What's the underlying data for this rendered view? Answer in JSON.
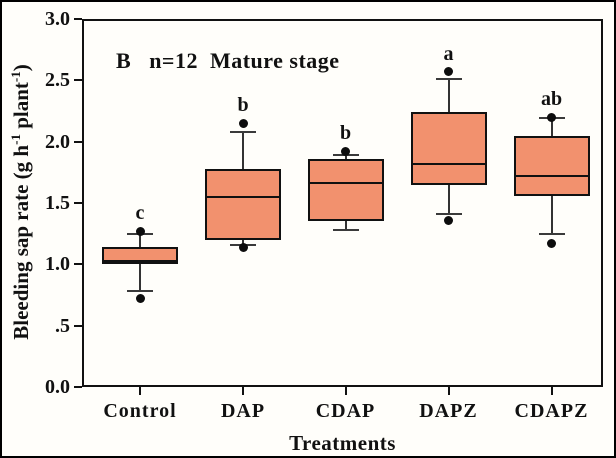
{
  "chart_data": {
    "type": "box",
    "panel_label": "B",
    "annotation": "n=12  Mature stage",
    "title": "B  n=12  Mature stage",
    "xlabel": "Treatments",
    "ylabel": "Bleeding sap rate (g h⁻¹ plant⁻¹)",
    "ylabel_parts": [
      {
        "text": "Bleeding sap rate (g h"
      },
      {
        "sup": "-1"
      },
      {
        "text": " plant"
      },
      {
        "sup": "-1"
      },
      {
        "text": ")"
      }
    ],
    "categories": [
      "Control",
      "DAP",
      "CDAP",
      "DAPZ",
      "CDAPZ"
    ],
    "ylim": [
      0.0,
      3.0
    ],
    "yticks": [
      {
        "label": "0.0",
        "value": 0.0
      },
      {
        "label": ".5",
        "value": 0.5
      },
      {
        "label": "1.0",
        "value": 1.0
      },
      {
        "label": "1.5",
        "value": 1.5
      },
      {
        "label": "2.0",
        "value": 2.0
      },
      {
        "label": "2.5",
        "value": 2.5
      },
      {
        "label": "3.0",
        "value": 3.0
      }
    ],
    "grid": false,
    "legend": null,
    "box_fill_color": "#F2916E",
    "line_color": "#111111",
    "series": [
      {
        "category": "Control",
        "sig_letter": "c",
        "q1": 1.0,
        "median": 1.03,
        "q3": 1.14,
        "whisker_low": 0.78,
        "whisker_high": 1.25,
        "outlier_low": 0.72,
        "outlier_high": 1.27
      },
      {
        "category": "DAP",
        "sig_letter": "b",
        "q1": 1.2,
        "median": 1.55,
        "q3": 1.78,
        "whisker_low": 1.16,
        "whisker_high": 2.08,
        "outlier_low": 1.14,
        "outlier_high": 2.15
      },
      {
        "category": "CDAP",
        "sig_letter": "b",
        "q1": 1.35,
        "median": 1.66,
        "q3": 1.86,
        "whisker_low": 1.28,
        "whisker_high": 1.89,
        "outlier_low": null,
        "outlier_high": 1.92
      },
      {
        "category": "DAPZ",
        "sig_letter": "a",
        "q1": 1.65,
        "median": 1.82,
        "q3": 2.24,
        "whisker_low": 1.41,
        "whisker_high": 2.51,
        "outlier_low": 1.36,
        "outlier_high": 2.57
      },
      {
        "category": "CDAPZ",
        "sig_letter": "ab",
        "q1": 1.56,
        "median": 1.72,
        "q3": 2.05,
        "whisker_low": 1.25,
        "whisker_high": 2.19,
        "outlier_low": 1.17,
        "outlier_high": 2.2
      }
    ]
  }
}
